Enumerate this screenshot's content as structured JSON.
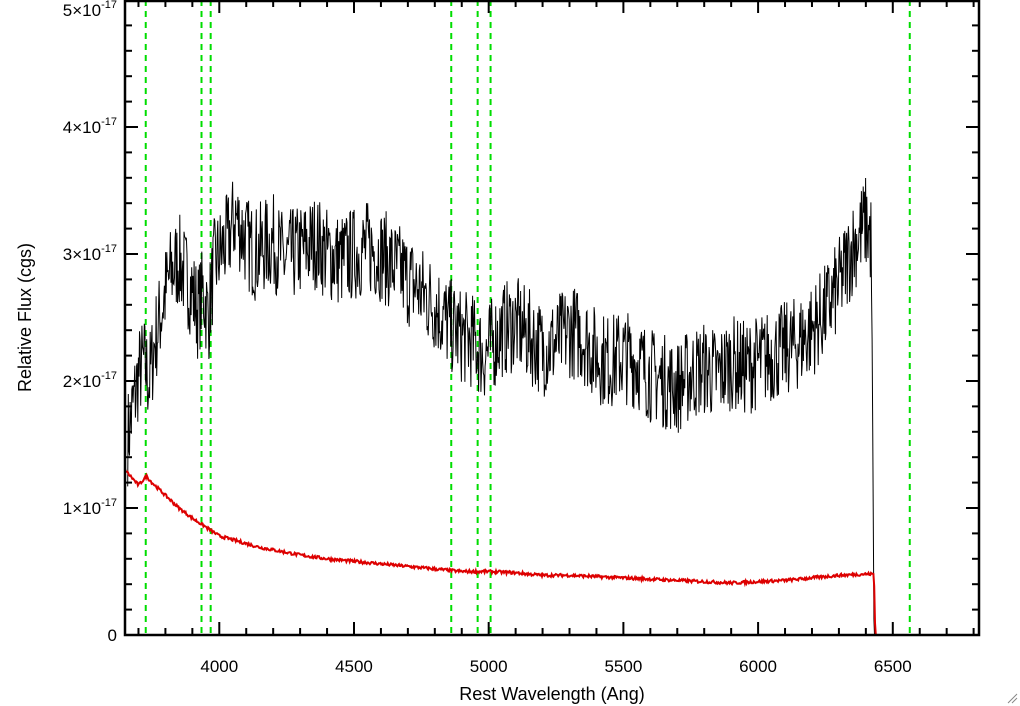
{
  "chart_data": {
    "type": "line",
    "title": "",
    "xlabel": "Rest Wavelength (Ang)",
    "ylabel": "Relative Flux (cgs)",
    "xlim": [
      3650,
      6820
    ],
    "ylim": [
      0,
      5e-17
    ],
    "x_ticks": [
      {
        "value": 4000,
        "label": "4000"
      },
      {
        "value": 4500,
        "label": "4500"
      },
      {
        "value": 5000,
        "label": "5000"
      },
      {
        "value": 5500,
        "label": "5500"
      },
      {
        "value": 6000,
        "label": "6000"
      },
      {
        "value": 6500,
        "label": "6500"
      }
    ],
    "y_ticks": [
      {
        "value": 0,
        "mantissa": "0",
        "exponent": ""
      },
      {
        "value": 1e-17,
        "mantissa": "1×10",
        "exponent": "-17"
      },
      {
        "value": 2e-17,
        "mantissa": "2×10",
        "exponent": "-17"
      },
      {
        "value": 3e-17,
        "mantissa": "3×10",
        "exponent": "-17"
      },
      {
        "value": 4e-17,
        "mantissa": "4×10",
        "exponent": "-17"
      },
      {
        "value": 5e-17,
        "mantissa": "5×10",
        "exponent": "-17"
      }
    ],
    "vertical_reference_lines": {
      "color": "#00dd00",
      "style": "dashed",
      "x": [
        3727,
        3934,
        3968,
        4861,
        4959,
        5007,
        6563
      ]
    },
    "series": [
      {
        "color": "#000000",
        "x": [
          3660,
          3680,
          3700,
          3720,
          3740,
          3760,
          3780,
          3800,
          3820,
          3850,
          3880,
          3900,
          3920,
          3940,
          3960,
          3980,
          4000,
          4030,
          4060,
          4080,
          4100,
          4130,
          4160,
          4200,
          4240,
          4280,
          4320,
          4360,
          4400,
          4450,
          4500,
          4550,
          4600,
          4650,
          4700,
          4750,
          4800,
          4850,
          4900,
          4950,
          4980,
          5000,
          5050,
          5100,
          5150,
          5200,
          5250,
          5300,
          5350,
          5400,
          5450,
          5500,
          5550,
          5600,
          5650,
          5700,
          5750,
          5800,
          5850,
          5900,
          5950,
          6000,
          6050,
          6100,
          6150,
          6200,
          6250,
          6300,
          6350,
          6400,
          6420,
          6430,
          6500,
          6600,
          6700,
          6820
        ],
        "y": [
          1.55e-17,
          1.8e-17,
          2.05e-17,
          2.15e-17,
          2e-17,
          2.3e-17,
          2.5e-17,
          2.7e-17,
          2.85e-17,
          2.95e-17,
          2.8e-17,
          2.7e-17,
          2.55e-17,
          2.7e-17,
          2.5e-17,
          2.9e-17,
          3e-17,
          3.1e-17,
          3.3e-17,
          3.2e-17,
          3.1e-17,
          3e-17,
          3.05e-17,
          3.1e-17,
          2.95e-17,
          3e-17,
          3.05e-17,
          3.1e-17,
          3e-17,
          2.95e-17,
          3e-17,
          3.05e-17,
          3e-17,
          2.9e-17,
          2.8e-17,
          2.7e-17,
          2.6e-17,
          2.45e-17,
          2.35e-17,
          2.3e-17,
          2.2e-17,
          2.25e-17,
          2.4e-17,
          2.45e-17,
          2.35e-17,
          2.25e-17,
          2.3e-17,
          2.4e-17,
          2.35e-17,
          2.2e-17,
          2.15e-17,
          2.2e-17,
          2.15e-17,
          2.05e-17,
          2e-17,
          1.95e-17,
          2.05e-17,
          2.1e-17,
          2.05e-17,
          2.15e-17,
          2.1e-17,
          2.15e-17,
          2.2e-17,
          2.25e-17,
          2.3e-17,
          2.4e-17,
          2.55e-17,
          2.75e-17,
          3.05e-17,
          3.25e-17,
          3.1e-17,
          0,
          0,
          0,
          0,
          0
        ]
      },
      {
        "color": "#dd0000",
        "x": [
          3650,
          3700,
          3730,
          3750,
          3800,
          3850,
          3900,
          3950,
          4000,
          4050,
          4100,
          4150,
          4200,
          4300,
          4400,
          4500,
          4600,
          4700,
          4800,
          4900,
          5000,
          5100,
          5200,
          5300,
          5400,
          5500,
          5600,
          5700,
          5800,
          5900,
          6000,
          6100,
          6200,
          6300,
          6400,
          6430,
          6435,
          6500,
          6600,
          6700,
          6820
        ],
        "y": [
          1.3e-17,
          1.18e-17,
          1.25e-17,
          1.2e-17,
          1.1e-17,
          1e-17,
          9.2e-18,
          8.5e-18,
          7.8e-18,
          7.5e-18,
          7.2e-18,
          6.9e-18,
          6.7e-18,
          6.3e-18,
          6e-18,
          5.8e-18,
          5.6e-18,
          5.4e-18,
          5.2e-18,
          5e-18,
          5e-18,
          4.9e-18,
          4.7e-18,
          4.7e-18,
          4.6e-18,
          4.5e-18,
          4.4e-18,
          4.3e-18,
          4.2e-18,
          4.1e-18,
          4.2e-18,
          4.3e-18,
          4.5e-18,
          4.7e-18,
          4.8e-18,
          4.8e-18,
          0,
          0,
          0,
          0,
          0
        ]
      }
    ],
    "legend": "none",
    "grid": false
  }
}
